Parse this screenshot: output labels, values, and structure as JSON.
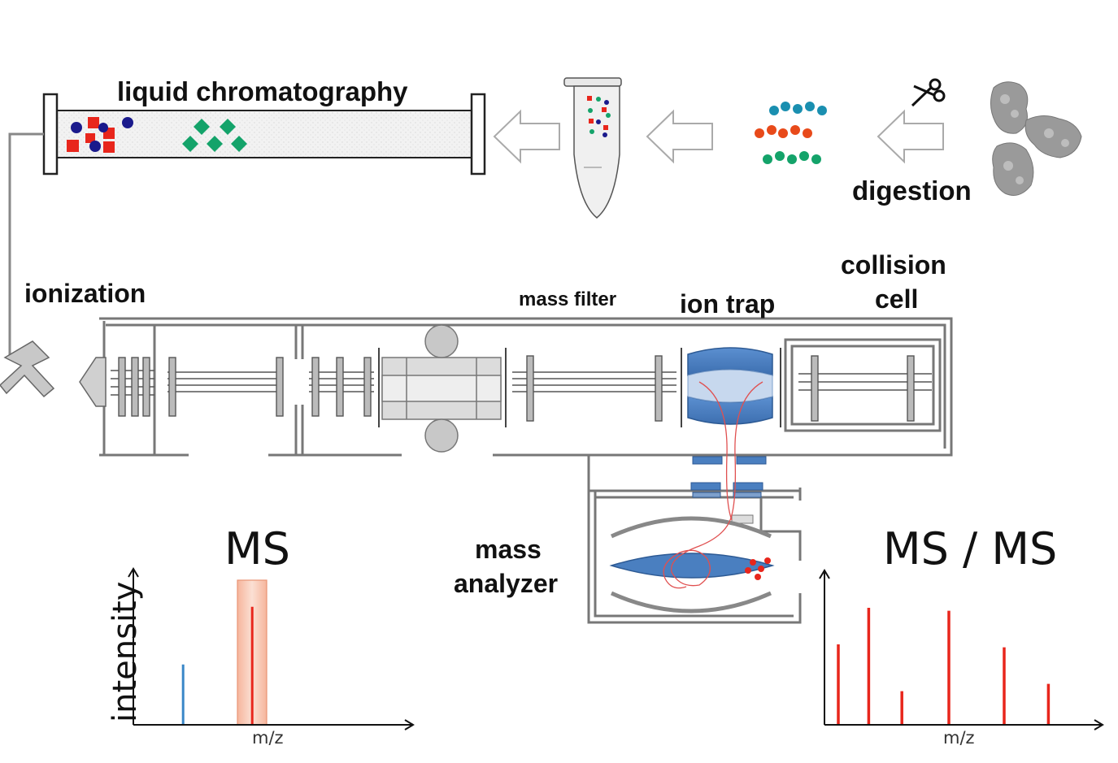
{
  "labels": {
    "lc": "liquid chromatography",
    "digestion": "digestion",
    "ionization": "ionization",
    "mass_filter": "mass filter",
    "ion_trap": "ion trap",
    "collision_cell_1": "collision",
    "collision_cell_2": "cell",
    "mass_analyzer_1": "mass",
    "mass_analyzer_2": "analyzer",
    "ms_title": "MS",
    "msms_title": "MS / MS",
    "ms_ylabel": "intensity",
    "ms_xlabel": "m/z",
    "msms_xlabel": "m/z"
  },
  "icons": {
    "scissors": "scissors-icon",
    "protein": "protein-structure",
    "tube": "sample-tube",
    "arrows": "flow-arrow"
  },
  "colors": {
    "red": "#e8261c",
    "blue_dot": "#1a1a8c",
    "green": "#14a36a",
    "teal_bead": "#1a8fb0",
    "orange_bead": "#e84a1a",
    "ion_optics": "#4a7fc0",
    "highlight": "#f6c9b6"
  },
  "ms_spectrum": {
    "peaks": [
      {
        "x": 0.18,
        "h": 0.45,
        "color": "#3a87c8"
      },
      {
        "x": 0.43,
        "h": 0.88,
        "color": "#e8261c",
        "highlighted": true
      }
    ]
  },
  "msms_spectrum": {
    "peaks": [
      {
        "x": 0.05,
        "h": 0.55
      },
      {
        "x": 0.16,
        "h": 0.8
      },
      {
        "x": 0.28,
        "h": 0.23
      },
      {
        "x": 0.45,
        "h": 0.78
      },
      {
        "x": 0.65,
        "h": 0.53
      },
      {
        "x": 0.81,
        "h": 0.28
      }
    ]
  }
}
